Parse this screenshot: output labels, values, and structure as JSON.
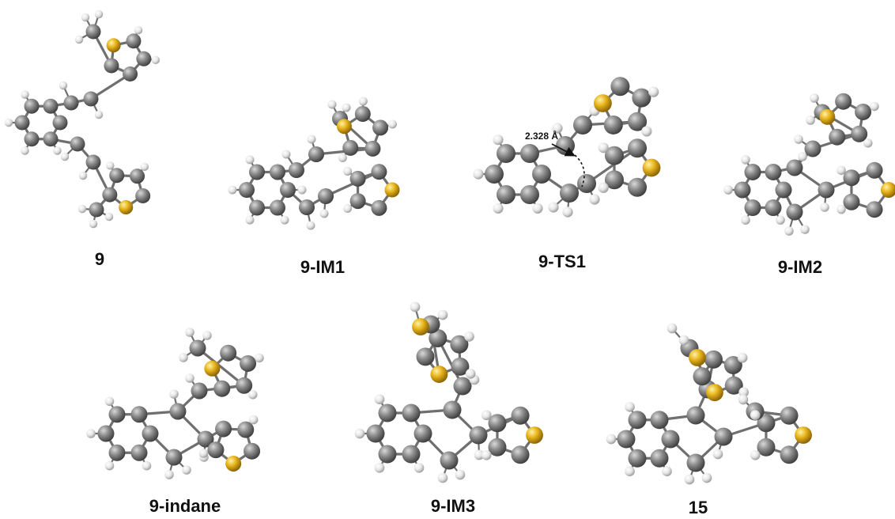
{
  "structures": [
    {
      "id": "s9",
      "label": "9"
    },
    {
      "id": "s9im1",
      "label": "9-IM1"
    },
    {
      "id": "s9ts1",
      "label": "9-TS1",
      "annotation": "2.328 Å"
    },
    {
      "id": "s9im2",
      "label": "9-IM2"
    },
    {
      "id": "s9indane",
      "label": "9-indane"
    },
    {
      "id": "s9im3",
      "label": "9-IM3"
    },
    {
      "id": "s15",
      "label": "15"
    }
  ],
  "colors": {
    "carbon": "#808080",
    "hydrogen": "#e8e8e8",
    "sulfur": "#e5b31d",
    "bond": "#9a9a9a",
    "text": "#111111"
  }
}
